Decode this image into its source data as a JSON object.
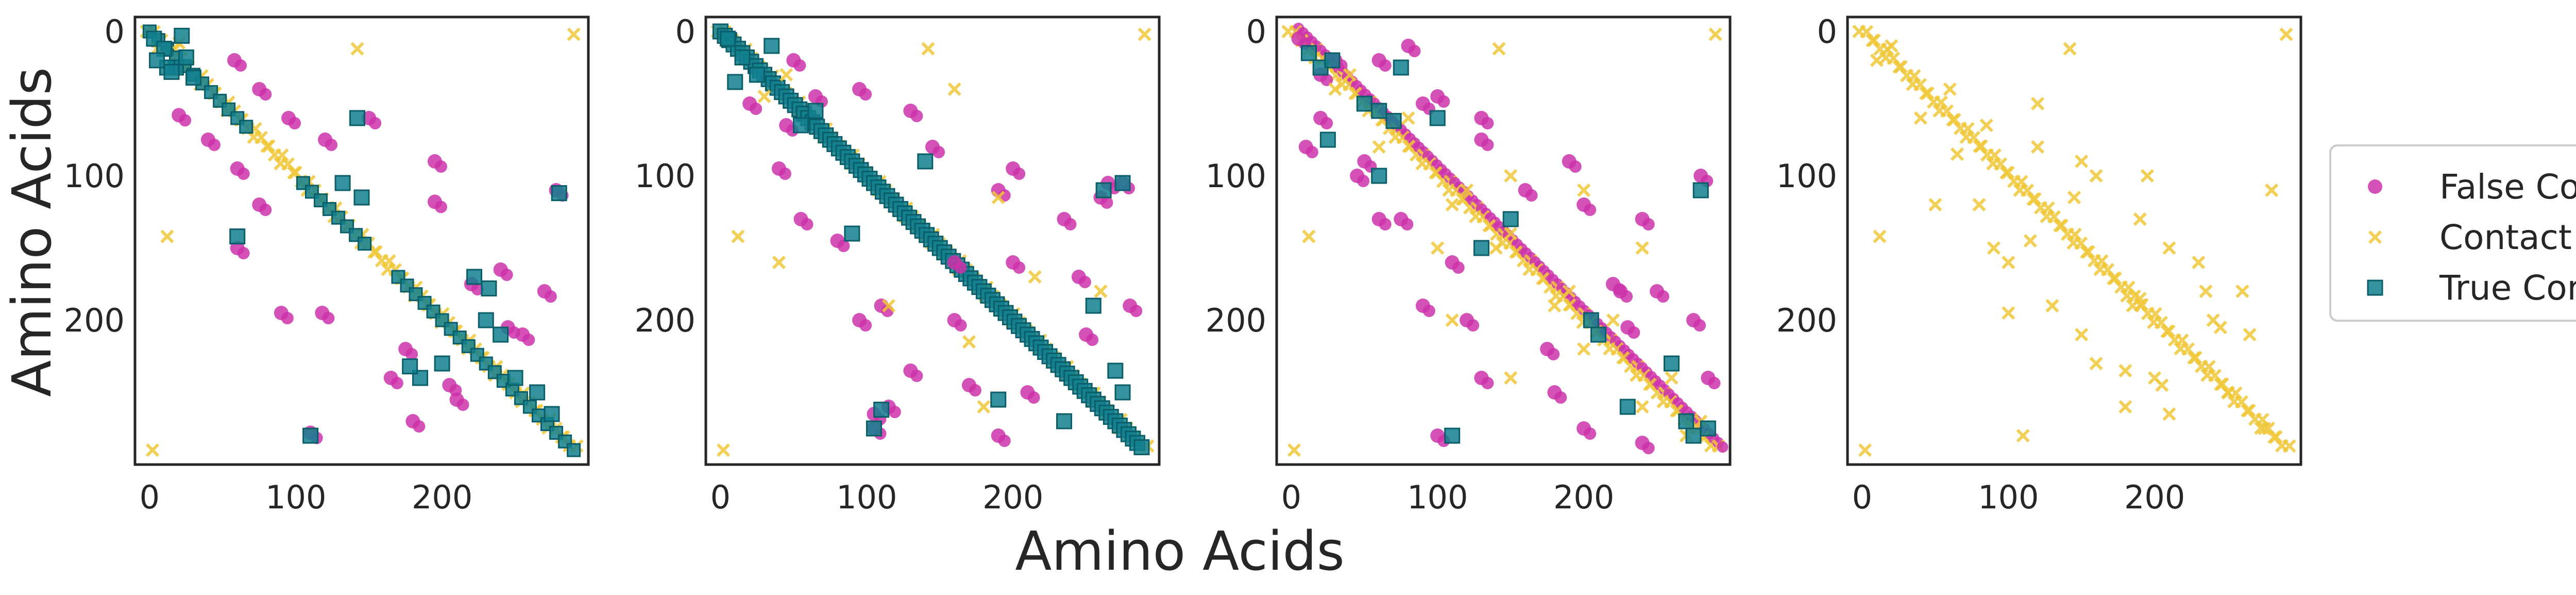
{
  "chart_data": {
    "type": "scatter",
    "x_label": "Amino Acids",
    "y_label": "Amino Acids",
    "xlim": [
      -10,
      300
    ],
    "ylim": [
      300,
      -10
    ],
    "x_ticks": [
      0,
      100,
      200
    ],
    "y_ticks": [
      0,
      100,
      200
    ],
    "grid": false,
    "legend_position": "right",
    "legend": [
      {
        "label": "False Contact",
        "marker": "circle",
        "color": "#cc33aa"
      },
      {
        "label": "Contact Lost",
        "marker": "x",
        "color": "#f0c83a"
      },
      {
        "label": "True Contact",
        "marker": "square",
        "color": "#12808f"
      }
    ],
    "series_names": [
      "False Contact",
      "Contact Lost",
      "True Contact"
    ],
    "colors": {
      "False Contact": "#cc33aa",
      "Contact Lost": "#f0c83a",
      "True Contact": "#12808f"
    },
    "panels": [
      {
        "id": "panel-1",
        "diagonal_band": [
          [
            0,
            0
          ],
          [
            290,
            290
          ]
        ],
        "diagonal_true_contact_ranges": [
          [
            0,
            70
          ],
          [
            105,
            150
          ],
          [
            170,
            290
          ]
        ],
        "series": {
          "Contact Lost": [
            [
              290,
              2
            ],
            [
              2,
              290
            ],
            [
              12,
              142
            ],
            [
              142,
              12
            ],
            [
              5,
              12
            ],
            [
              20,
              8
            ]
          ],
          "False Contact": [
            [
              58,
              20
            ],
            [
              20,
              58
            ],
            [
              75,
              40
            ],
            [
              40,
              75
            ],
            [
              95,
              60
            ],
            [
              60,
              95
            ],
            [
              120,
              75
            ],
            [
              75,
              120
            ],
            [
              150,
              60
            ],
            [
              60,
              150
            ],
            [
              195,
              90
            ],
            [
              90,
              195
            ],
            [
              240,
              165
            ],
            [
              165,
              240
            ],
            [
              270,
              180
            ],
            [
              180,
              270
            ],
            [
              255,
              210
            ],
            [
              210,
              255
            ],
            [
              278,
              110
            ],
            [
              110,
              278
            ],
            [
              195,
              118
            ],
            [
              118,
              195
            ],
            [
              220,
              175
            ],
            [
              175,
              220
            ],
            [
              245,
              205
            ],
            [
              205,
              245
            ]
          ],
          "True Contact": [
            [
              3,
              5
            ],
            [
              10,
              12
            ],
            [
              18,
              25
            ],
            [
              25,
              18
            ],
            [
              12,
              25
            ],
            [
              30,
              32
            ],
            [
              22,
              3
            ],
            [
              5,
              20
            ],
            [
              15,
              28
            ],
            [
              142,
              60
            ],
            [
              60,
              142
            ],
            [
              132,
              105
            ],
            [
              110,
              280
            ],
            [
              280,
              112
            ],
            [
              200,
              230
            ],
            [
              230,
              200
            ],
            [
              185,
              240
            ],
            [
              240,
              210
            ],
            [
              250,
              240
            ],
            [
              265,
              250
            ],
            [
              275,
              265
            ],
            [
              232,
              178
            ],
            [
              178,
              232
            ],
            [
              222,
              170
            ],
            [
              145,
              115
            ]
          ]
        }
      },
      {
        "id": "panel-2",
        "diagonal_band": [
          [
            0,
            0
          ],
          [
            290,
            290
          ]
        ],
        "diagonal_true_contact_ranges": [
          [
            0,
            290
          ]
        ],
        "series": {
          "Contact Lost": [
            [
              290,
              2
            ],
            [
              2,
              290
            ],
            [
              12,
              142
            ],
            [
              142,
              12
            ],
            [
              40,
              160
            ],
            [
              160,
              40
            ],
            [
              215,
              170
            ],
            [
              170,
              215
            ],
            [
              30,
              45
            ],
            [
              45,
              30
            ],
            [
              190,
              115
            ],
            [
              115,
              190
            ],
            [
              260,
              180
            ],
            [
              180,
              260
            ]
          ],
          "False Contact": [
            [
              50,
              20
            ],
            [
              20,
              50
            ],
            [
              65,
              45
            ],
            [
              45,
              65
            ],
            [
              95,
              40
            ],
            [
              40,
              95
            ],
            [
              130,
              55
            ],
            [
              55,
              130
            ],
            [
              145,
              80
            ],
            [
              80,
              145
            ],
            [
              190,
              110
            ],
            [
              110,
              190
            ],
            [
              160,
              160
            ],
            [
              200,
              160
            ],
            [
              160,
              200
            ],
            [
              245,
              170
            ],
            [
              170,
              245
            ],
            [
              275,
              105
            ],
            [
              105,
              275
            ],
            [
              250,
              210
            ],
            [
              210,
              250
            ],
            [
              280,
              190
            ],
            [
              190,
              280
            ],
            [
              115,
              260
            ],
            [
              260,
              115
            ],
            [
              235,
              130
            ],
            [
              130,
              235
            ],
            [
              105,
              265
            ],
            [
              265,
              105
            ],
            [
              200,
              95
            ],
            [
              95,
              200
            ]
          ],
          "True Contact": [
            [
              5,
              5
            ],
            [
              15,
              18
            ],
            [
              25,
              30
            ],
            [
              35,
              10
            ],
            [
              10,
              35
            ],
            [
              90,
              140
            ],
            [
              140,
              90
            ],
            [
              255,
              190
            ],
            [
              190,
              255
            ],
            [
              262,
              110
            ],
            [
              110,
              262
            ],
            [
              270,
              235
            ],
            [
              235,
              270
            ],
            [
              105,
              275
            ],
            [
              275,
              105
            ],
            [
              275,
              250
            ],
            [
              65,
              55
            ],
            [
              55,
              65
            ]
          ]
        }
      },
      {
        "id": "panel-3",
        "diagonal_band": [
          [
            0,
            0
          ],
          [
            290,
            290
          ]
        ],
        "diagonal_true_contact_ranges": [],
        "series": {
          "Contact Lost": [
            [
              290,
              2
            ],
            [
              2,
              290
            ],
            [
              12,
              142
            ],
            [
              142,
              12
            ],
            [
              40,
              30
            ],
            [
              30,
              40
            ],
            [
              60,
              80
            ],
            [
              80,
              60
            ],
            [
              110,
              120
            ],
            [
              120,
              110
            ],
            [
              150,
              140
            ],
            [
              140,
              150
            ],
            [
              190,
              180
            ],
            [
              180,
              190
            ],
            [
              220,
              200
            ],
            [
              200,
              220
            ],
            [
              260,
              240
            ],
            [
              240,
              260
            ],
            [
              280,
              270
            ],
            [
              270,
              280
            ],
            [
              200,
              110
            ],
            [
              110,
              200
            ],
            [
              240,
              150
            ],
            [
              150,
              240
            ],
            [
              100,
              150
            ],
            [
              150,
              100
            ]
          ],
          "False Contact": [
            [
              5,
              5
            ],
            [
              20,
              30
            ],
            [
              30,
              20
            ],
            [
              60,
              20
            ],
            [
              20,
              60
            ],
            [
              80,
              10
            ],
            [
              10,
              80
            ],
            [
              100,
              45
            ],
            [
              45,
              100
            ],
            [
              130,
              75
            ],
            [
              75,
              130
            ],
            [
              190,
              90
            ],
            [
              90,
              190
            ],
            [
              200,
              120
            ],
            [
              120,
              200
            ],
            [
              240,
              130
            ],
            [
              130,
              240
            ],
            [
              250,
              180
            ],
            [
              180,
              250
            ],
            [
              275,
              200
            ],
            [
              200,
              275
            ],
            [
              285,
              240
            ],
            [
              240,
              285
            ],
            [
              100,
              280
            ],
            [
              280,
              100
            ],
            [
              220,
              175
            ],
            [
              175,
              220
            ],
            [
              160,
              110
            ],
            [
              110,
              160
            ],
            [
              60,
              130
            ],
            [
              130,
              60
            ],
            [
              90,
              50
            ],
            [
              50,
              90
            ],
            [
              225,
              180
            ],
            [
              230,
              205
            ]
          ],
          "True Contact": [
            [
              12,
              15
            ],
            [
              20,
              25
            ],
            [
              28,
              20
            ],
            [
              50,
              50
            ],
            [
              60,
              55
            ],
            [
              70,
              62
            ],
            [
              100,
              60
            ],
            [
              60,
              100
            ],
            [
              130,
              150
            ],
            [
              150,
              130
            ],
            [
              205,
              200
            ],
            [
              210,
              210
            ],
            [
              230,
              260
            ],
            [
              260,
              230
            ],
            [
              270,
              270
            ],
            [
              275,
              280
            ],
            [
              285,
              275
            ],
            [
              110,
              280
            ],
            [
              280,
              110
            ],
            [
              25,
              75
            ],
            [
              75,
              25
            ]
          ]
        }
      },
      {
        "id": "panel-4",
        "diagonal_band": [
          [
            0,
            0
          ],
          [
            290,
            290
          ]
        ],
        "diagonal_true_contact_ranges": [],
        "series": {
          "Contact Lost": [
            [
              290,
              2
            ],
            [
              2,
              290
            ],
            [
              12,
              142
            ],
            [
              142,
              12
            ],
            [
              20,
              10
            ],
            [
              10,
              20
            ],
            [
              40,
              60
            ],
            [
              60,
              40
            ],
            [
              50,
              120
            ],
            [
              120,
              50
            ],
            [
              100,
              195
            ],
            [
              195,
              100
            ],
            [
              145,
              115
            ],
            [
              115,
              145
            ],
            [
              190,
              130
            ],
            [
              130,
              190
            ],
            [
              230,
              160
            ],
            [
              160,
              230
            ],
            [
              245,
              205
            ],
            [
              205,
              245
            ],
            [
              280,
              110
            ],
            [
              110,
              280
            ],
            [
              250,
              250
            ],
            [
              275,
              275
            ],
            [
              150,
              90
            ],
            [
              90,
              150
            ],
            [
              185,
              190
            ],
            [
              190,
              185
            ],
            [
              260,
              180
            ],
            [
              180,
              260
            ],
            [
              240,
              200
            ],
            [
              200,
              240
            ],
            [
              120,
              80
            ],
            [
              80,
              120
            ],
            [
              160,
              100
            ],
            [
              100,
              160
            ],
            [
              65,
              85
            ],
            [
              85,
              65
            ],
            [
              210,
              150
            ],
            [
              150,
              210
            ],
            [
              235,
              180
            ],
            [
              180,
              235
            ],
            [
              265,
              210
            ],
            [
              210,
              265
            ]
          ],
          "False Contact": [],
          "True Contact": []
        }
      }
    ]
  }
}
